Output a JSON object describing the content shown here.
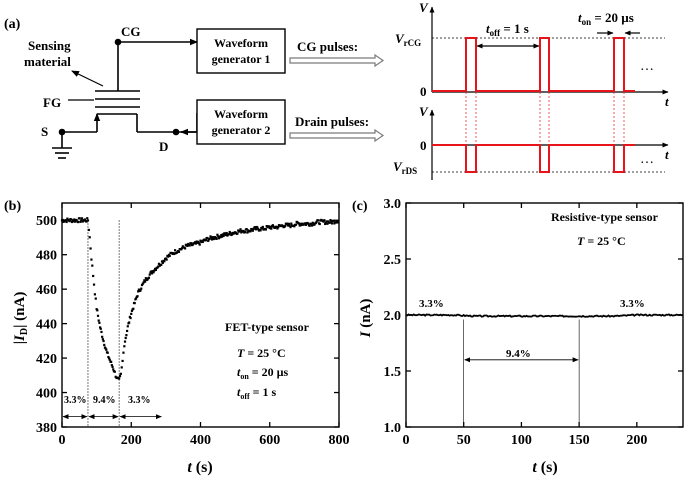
{
  "panels": {
    "a": {
      "label": "(a)",
      "schematic": {
        "cg": "CG",
        "fg": "FG",
        "s": "S",
        "d": "D",
        "sensing": [
          "Sensing",
          "material"
        ],
        "wg1": [
          "Waveform",
          "generator 1"
        ],
        "wg2": [
          "Waveform",
          "generator 2"
        ],
        "cg_pulses": "CG pulses:",
        "drain_pulses": "Drain pulses:"
      },
      "top_wave": {
        "v": "V",
        "zero": "0",
        "t": "t",
        "vrcg_main": "V",
        "vrcg_sub": "rCG",
        "toff_main": "t",
        "toff_sub": "off",
        "toff_val": " = 1 s",
        "ton_main": "t",
        "ton_sub": "on",
        "ton_val": " = 20 µs",
        "dots": "…"
      },
      "bottom_wave": {
        "v": "V",
        "zero": "0",
        "t": "t",
        "vrds_main": "V",
        "vrds_sub": "rDS",
        "dots": "…"
      },
      "colors": {
        "pulse": "#e8141c",
        "wire": "#000000"
      }
    },
    "b": {
      "label": "(b)",
      "ylabel_pre": "|",
      "ylabel_i": "I",
      "ylabel_sub": "D",
      "ylabel_post": "| (nA)",
      "xlabel_t": "t",
      "xlabel_unit": " (s)",
      "x_ticks": [
        "0",
        "200",
        "400",
        "600",
        "800"
      ],
      "y_ticks": [
        "380",
        "400",
        "420",
        "440",
        "460",
        "480",
        "500"
      ],
      "pct_left": "3.3%",
      "pct_mid": "9.4%",
      "pct_right": "3.3%",
      "legend": {
        "title": "FET-type sensor",
        "temp_i": "T",
        "temp_val": " = 25 °C",
        "ton_i": "t",
        "ton_sub": "on",
        "ton_val": " = 20 µs",
        "toff_i": "t",
        "toff_sub": "off",
        "toff_val": " = 1 s"
      }
    },
    "c": {
      "label": "(c)",
      "ylabel_i": "I",
      "ylabel_unit": " (nA)",
      "xlabel_t": "t",
      "xlabel_unit": " (s)",
      "x_ticks": [
        "0",
        "50",
        "100",
        "150",
        "200"
      ],
      "y_ticks": [
        "1.0",
        "1.5",
        "2.0",
        "2.5",
        "3.0"
      ],
      "pct_left": "3.3%",
      "pct_mid": "9.4%",
      "pct_right": "3.3%",
      "legend": {
        "title": "Resistive-type sensor",
        "temp_i": "T",
        "temp_val": " = 25 °C"
      }
    }
  },
  "chart_data": [
    {
      "type": "scatter",
      "panel": "b",
      "xlabel": "t (s)",
      "ylabel": "|ID| (nA)",
      "xlim": [
        0,
        800
      ],
      "ylim": [
        380,
        510
      ],
      "x_ticks": [
        0,
        200,
        400,
        600,
        800
      ],
      "y_ticks": [
        380,
        400,
        420,
        440,
        460,
        480,
        500
      ],
      "series": [
        {
          "x": [
            0,
            20,
            40,
            60,
            75,
            80,
            85,
            90,
            95,
            100,
            110,
            120,
            130,
            140,
            150,
            155,
            160,
            165,
            170,
            175,
            180,
            190,
            200,
            210,
            220,
            240,
            260,
            280,
            300,
            320,
            340,
            360,
            380,
            400,
            420,
            440,
            460,
            480,
            500,
            520,
            540,
            560,
            580,
            600,
            620,
            640,
            660,
            680,
            700,
            720,
            740,
            760,
            780,
            800
          ],
          "y": [
            500,
            500,
            500,
            500,
            500,
            490,
            478,
            468,
            458,
            449,
            438,
            430,
            423,
            418,
            413,
            410,
            408,
            407,
            410,
            418,
            428,
            438,
            446,
            452,
            458,
            465,
            470,
            474,
            478,
            481,
            483,
            485,
            486,
            487,
            489,
            490,
            491,
            492,
            493,
            494,
            494,
            495,
            495,
            496,
            496,
            497,
            497,
            498,
            498,
            498,
            499,
            499,
            499,
            500
          ]
        }
      ],
      "annotations": [
        {
          "type": "vline",
          "x": 75
        },
        {
          "type": "vline",
          "x": 165
        },
        {
          "type": "span",
          "x0": 0,
          "x1": 75,
          "y": 386,
          "label": "3.3%"
        },
        {
          "type": "span",
          "x0": 75,
          "x1": 165,
          "y": 386,
          "label": "9.4%"
        },
        {
          "type": "span",
          "x0": 165,
          "x1": 290,
          "y": 386,
          "label": "3.3%"
        }
      ],
      "legend": [
        "FET-type sensor",
        "T = 25 °C",
        "ton = 20 µs",
        "toff = 1 s"
      ],
      "legend_position": "bottom-right"
    },
    {
      "type": "line",
      "panel": "c",
      "xlabel": "t (s)",
      "ylabel": "I (nA)",
      "xlim": [
        0,
        240
      ],
      "ylim": [
        1.0,
        3.0
      ],
      "x_ticks": [
        0,
        50,
        100,
        150,
        200
      ],
      "y_ticks": [
        1.0,
        1.5,
        2.0,
        2.5,
        3.0
      ],
      "series": [
        {
          "x": [
            0,
            20,
            40,
            60,
            80,
            100,
            120,
            140,
            160,
            180,
            200,
            220,
            240
          ],
          "y": [
            2.0,
            2.0,
            2.0,
            1.99,
            1.99,
            1.99,
            1.99,
            1.99,
            1.99,
            1.99,
            2.0,
            2.0,
            2.0
          ]
        }
      ],
      "annotations": [
        {
          "type": "vline",
          "x": 50
        },
        {
          "type": "vline",
          "x": 150
        },
        {
          "type": "span",
          "x0": 50,
          "x1": 150,
          "y": 1.6,
          "label": "9.4%"
        },
        {
          "type": "label",
          "x": 25,
          "y": 2.07,
          "label": "3.3%"
        },
        {
          "type": "label",
          "x": 205,
          "y": 2.07,
          "label": "3.3%"
        }
      ],
      "legend": [
        "Resistive-type sensor",
        "T = 25 °C"
      ],
      "legend_position": "top-right"
    }
  ]
}
